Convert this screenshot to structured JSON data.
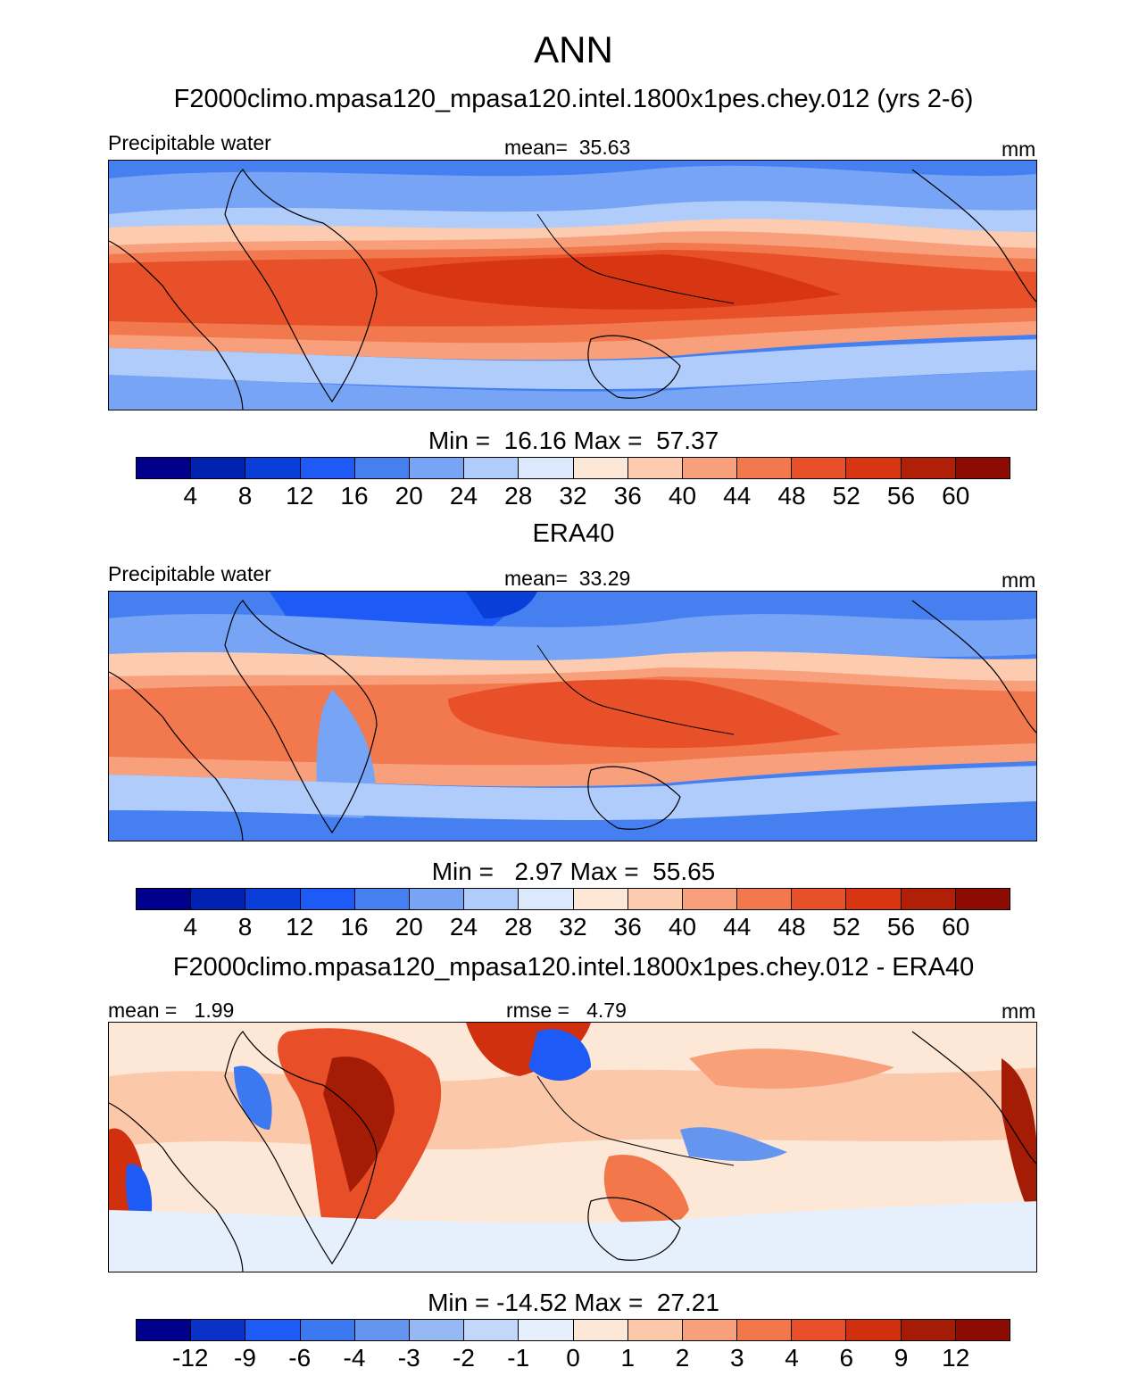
{
  "title": "ANN",
  "colors_abs": [
    "#00008c",
    "#0022b0",
    "#0a3ed8",
    "#1e5af5",
    "#4680f0",
    "#78a4f5",
    "#b0ccfa",
    "#dce8fc",
    "#fde8d8",
    "#fccbb0",
    "#f8a07c",
    "#f2784e",
    "#e8502a",
    "#d83612",
    "#b02008",
    "#8c0c04"
  ],
  "colors_diff": [
    "#00008c",
    "#0a32c8",
    "#1e5af5",
    "#3c78f0",
    "#6496f0",
    "#96b9f5",
    "#c3d7fa",
    "#e6f0fc",
    "#fde8d8",
    "#fcc8aa",
    "#f8a07a",
    "#f2784c",
    "#e84e28",
    "#d0300e",
    "#a41c06",
    "#8c0c04"
  ],
  "chart_data": [
    {
      "type": "heatmap",
      "title": "F2000climo.mpasa120_mpasa120.intel.1800x1pes.chey.012 (yrs 2-6)",
      "left_label": "Precipitable water",
      "center_label": "mean=  35.63",
      "units": "mm",
      "minmax": "Min =  16.16 Max =  57.37",
      "min": 16.16,
      "max": 57.37,
      "mean": 35.63,
      "colorbar_ticks": [
        "4",
        "8",
        "12",
        "16",
        "20",
        "24",
        "28",
        "32",
        "36",
        "40",
        "44",
        "48",
        "52",
        "56",
        "60"
      ]
    },
    {
      "type": "heatmap",
      "title": "ERA40",
      "left_label": "Precipitable water",
      "center_label": "mean=  33.29",
      "units": "mm",
      "minmax": "Min =   2.97 Max =  55.65",
      "min": 2.97,
      "max": 55.65,
      "mean": 33.29,
      "colorbar_ticks": [
        "4",
        "8",
        "12",
        "16",
        "20",
        "24",
        "28",
        "32",
        "36",
        "40",
        "44",
        "48",
        "52",
        "56",
        "60"
      ]
    },
    {
      "type": "heatmap",
      "title": "F2000climo.mpasa120_mpasa120.intel.1800x1pes.chey.012 - ERA40",
      "left_label": "mean =   1.99",
      "center_label": "rmse =   4.79",
      "units": "mm",
      "minmax": "Min = -14.52 Max =  27.21",
      "min": -14.52,
      "max": 27.21,
      "mean": 1.99,
      "rmse": 4.79,
      "colorbar_ticks": [
        "-12",
        "-9",
        "-6",
        "-4",
        "-3",
        "-2",
        "-1",
        "0",
        "1",
        "2",
        "3",
        "4",
        "6",
        "9",
        "12"
      ]
    }
  ]
}
